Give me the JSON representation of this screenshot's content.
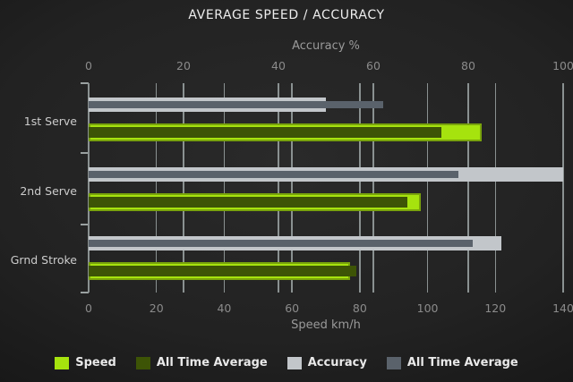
{
  "chart_data": {
    "type": "bar",
    "orientation": "horizontal",
    "title": "AVERAGE SPEED / ACCURACY",
    "categories": [
      "1st Serve",
      "2nd Serve",
      "Grnd Stroke"
    ],
    "axes": {
      "top": {
        "title": "Accuracy %",
        "min": 0,
        "max": 100,
        "ticks": [
          0,
          20,
          40,
          60,
          80,
          100
        ]
      },
      "bottom": {
        "title": "Speed km/h",
        "min": 0,
        "max": 140,
        "ticks": [
          0,
          20,
          40,
          60,
          80,
          100,
          120,
          140
        ]
      }
    },
    "grid": true,
    "legend_position": "bottom",
    "series": [
      {
        "name": "Speed",
        "axis": "bottom",
        "color": "#a6e30e",
        "values": [
          116,
          98,
          77
        ]
      },
      {
        "name": "All Time Average",
        "axis": "bottom",
        "color": "#3d5406",
        "values": [
          104,
          94,
          79
        ]
      },
      {
        "name": "Accuracy",
        "axis": "top",
        "color": "#c2c6ca",
        "values": [
          50,
          100,
          87
        ]
      },
      {
        "name": "All Time Average",
        "axis": "top",
        "color": "#5a626b",
        "values": [
          62,
          78,
          81
        ]
      }
    ]
  }
}
